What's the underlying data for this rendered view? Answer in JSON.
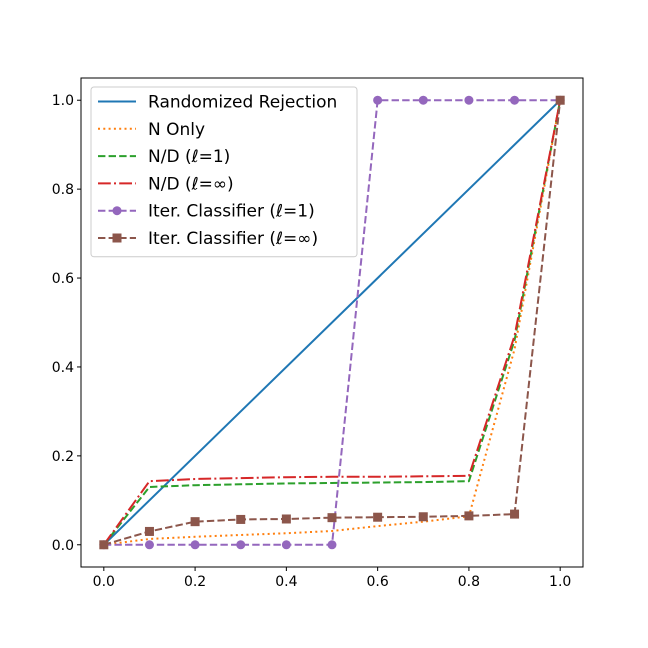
{
  "chart_data": {
    "type": "line",
    "xlim": [
      -0.05,
      1.05
    ],
    "ylim": [
      -0.05,
      1.05
    ],
    "x_ticks": [
      0.0,
      0.2,
      0.4,
      0.6,
      0.8,
      1.0
    ],
    "y_ticks": [
      0.0,
      0.2,
      0.4,
      0.6,
      0.8,
      1.0
    ],
    "x_tick_labels": [
      "0.0",
      "0.2",
      "0.4",
      "0.6",
      "0.8",
      "1.0"
    ],
    "y_tick_labels": [
      "0.0",
      "0.2",
      "0.4",
      "0.6",
      "0.8",
      "1.0"
    ],
    "grid": false,
    "legend_position": "top-left",
    "series": [
      {
        "name": "Randomized Rejection",
        "color": "#1f77b4",
        "dash": "solid",
        "marker": "none",
        "x": [
          0.0,
          1.0
        ],
        "y": [
          0.0,
          1.0
        ]
      },
      {
        "name": "N Only",
        "color": "#ff7f0e",
        "dash": "dotted",
        "marker": "none",
        "x": [
          0.0,
          0.1,
          0.2,
          0.3,
          0.4,
          0.5,
          0.6,
          0.7,
          0.8,
          0.9,
          1.0
        ],
        "y": [
          0.0,
          0.013,
          0.018,
          0.022,
          0.026,
          0.031,
          0.042,
          0.052,
          0.064,
          0.44,
          1.0
        ]
      },
      {
        "name": "N/D (ℓ=1)",
        "color": "#2ca02c",
        "dash": "dashed",
        "marker": "none",
        "x": [
          0.0,
          0.1,
          0.2,
          0.3,
          0.4,
          0.5,
          0.6,
          0.7,
          0.8,
          0.9,
          1.0
        ],
        "y": [
          0.0,
          0.13,
          0.134,
          0.136,
          0.138,
          0.139,
          0.14,
          0.141,
          0.143,
          0.46,
          1.0
        ]
      },
      {
        "name": "N/D (ℓ=∞)",
        "color": "#d62728",
        "dash": "dashdot",
        "marker": "none",
        "x": [
          0.0,
          0.1,
          0.2,
          0.3,
          0.4,
          0.5,
          0.6,
          0.7,
          0.8,
          0.9,
          1.0
        ],
        "y": [
          0.0,
          0.143,
          0.148,
          0.15,
          0.152,
          0.153,
          0.153,
          0.154,
          0.155,
          0.47,
          1.0
        ]
      },
      {
        "name": "Iter. Classifier (ℓ=1)",
        "color": "#9467bd",
        "dash": "dashed",
        "marker": "circle",
        "x": [
          0.0,
          0.1,
          0.2,
          0.3,
          0.4,
          0.5,
          0.6,
          0.7,
          0.8,
          0.9,
          1.0
        ],
        "y": [
          0.0,
          0.0,
          0.0,
          0.0,
          0.0,
          0.0,
          1.0,
          1.0,
          1.0,
          1.0,
          1.0
        ]
      },
      {
        "name": "Iter. Classifier (ℓ=∞)",
        "color": "#8c564b",
        "dash": "dashed",
        "marker": "square",
        "x": [
          0.0,
          0.1,
          0.2,
          0.3,
          0.4,
          0.5,
          0.6,
          0.7,
          0.8,
          0.9,
          1.0
        ],
        "y": [
          0.0,
          0.03,
          0.052,
          0.057,
          0.058,
          0.061,
          0.062,
          0.063,
          0.065,
          0.069,
          1.0
        ]
      }
    ]
  }
}
